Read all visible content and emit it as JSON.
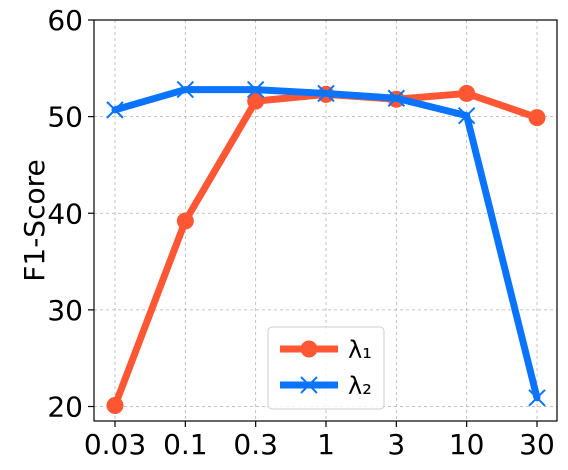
{
  "chart_data": {
    "type": "line",
    "title": "",
    "xlabel": "",
    "ylabel": "F1-Score",
    "categories": [
      "0.03",
      "0.1",
      "0.3",
      "1",
      "3",
      "10",
      "30"
    ],
    "ylim": [
      18.5,
      60
    ],
    "yticks": [
      20,
      30,
      40,
      50,
      60
    ],
    "grid": true,
    "legend_position": "bottom-center",
    "series": [
      {
        "name": "λ₁",
        "values": [
          20.1,
          39.2,
          51.6,
          52.3,
          51.8,
          52.4,
          49.9
        ],
        "color": "#ff5733",
        "marker": "circle"
      },
      {
        "name": "λ₂",
        "values": [
          50.7,
          52.8,
          52.8,
          52.4,
          51.9,
          50.1,
          20.9
        ],
        "color": "#0a74ff",
        "marker": "x"
      }
    ]
  }
}
